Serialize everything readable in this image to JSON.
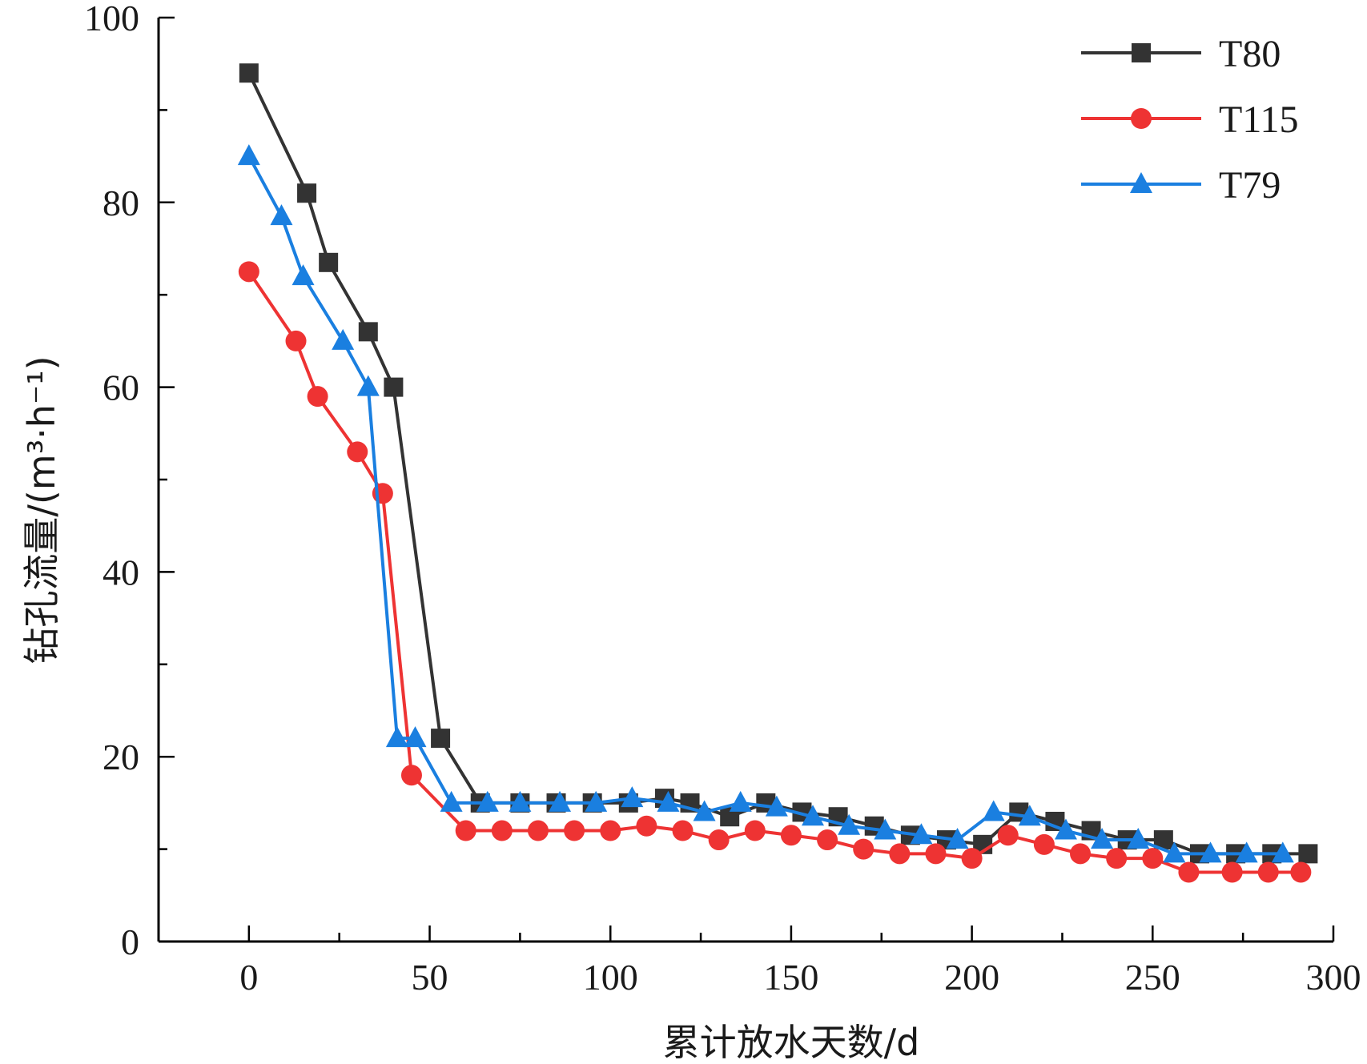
{
  "chart_data": {
    "type": "line",
    "xlabel": "累计放水天数/d",
    "ylabel": "钻孔流量/(m³·h⁻¹)",
    "xlim": [
      -25,
      300
    ],
    "ylim": [
      0,
      100
    ],
    "x_ticks": [
      0,
      50,
      100,
      150,
      200,
      250,
      300
    ],
    "y_ticks": [
      0,
      20,
      40,
      60,
      80,
      100
    ],
    "x_minor_ticks": [
      25,
      75,
      125,
      175,
      225,
      275
    ],
    "y_minor_ticks": [
      10,
      30,
      50,
      70,
      90
    ],
    "legend_position": "top-right",
    "series": [
      {
        "name": "T80",
        "color": "#333333",
        "marker": "square",
        "x": [
          0,
          16,
          22,
          33,
          40,
          53,
          64,
          75,
          85,
          95,
          105,
          115,
          122,
          133,
          143,
          153,
          163,
          173,
          183,
          193,
          203,
          213,
          223,
          233,
          243,
          253,
          263,
          273,
          283,
          293
        ],
        "y": [
          94,
          81,
          73.5,
          66,
          60,
          22,
          15,
          15,
          15,
          15,
          15,
          15.5,
          15,
          13.5,
          15,
          14,
          13.5,
          12.5,
          11.5,
          11,
          10.5,
          14,
          13,
          12,
          11,
          11,
          9.5,
          9.5,
          9.5,
          9.5
        ]
      },
      {
        "name": "T115",
        "color": "#ee3333",
        "marker": "circle",
        "x": [
          0,
          13,
          19,
          30,
          37,
          45,
          60,
          70,
          80,
          90,
          100,
          110,
          120,
          130,
          140,
          150,
          160,
          170,
          180,
          190,
          200,
          210,
          220,
          230,
          240,
          250,
          260,
          272,
          282,
          291
        ],
        "y": [
          72.5,
          65,
          59,
          53,
          48.5,
          18,
          12,
          12,
          12,
          12,
          12,
          12.5,
          12,
          11,
          12,
          11.5,
          11,
          10,
          9.5,
          9.5,
          9,
          11.5,
          10.5,
          9.5,
          9,
          9,
          7.5,
          7.5,
          7.5,
          7.5
        ]
      },
      {
        "name": "T79",
        "color": "#1a7fe0",
        "marker": "triangle",
        "x": [
          0,
          9,
          15,
          26,
          33,
          41,
          46,
          56,
          66,
          75,
          86,
          96,
          106,
          116,
          126,
          136,
          146,
          156,
          166,
          176,
          186,
          196,
          206,
          216,
          226,
          236,
          246,
          256,
          266,
          276,
          286
        ],
        "y": [
          85,
          78.5,
          72,
          65,
          60,
          22,
          22,
          15,
          15,
          15,
          15,
          15,
          15.5,
          15,
          14,
          15,
          14.5,
          13.5,
          12.5,
          12,
          11.5,
          11,
          14,
          13.5,
          12,
          11,
          11,
          9.5,
          9.5,
          9.5,
          9.5
        ]
      }
    ]
  }
}
